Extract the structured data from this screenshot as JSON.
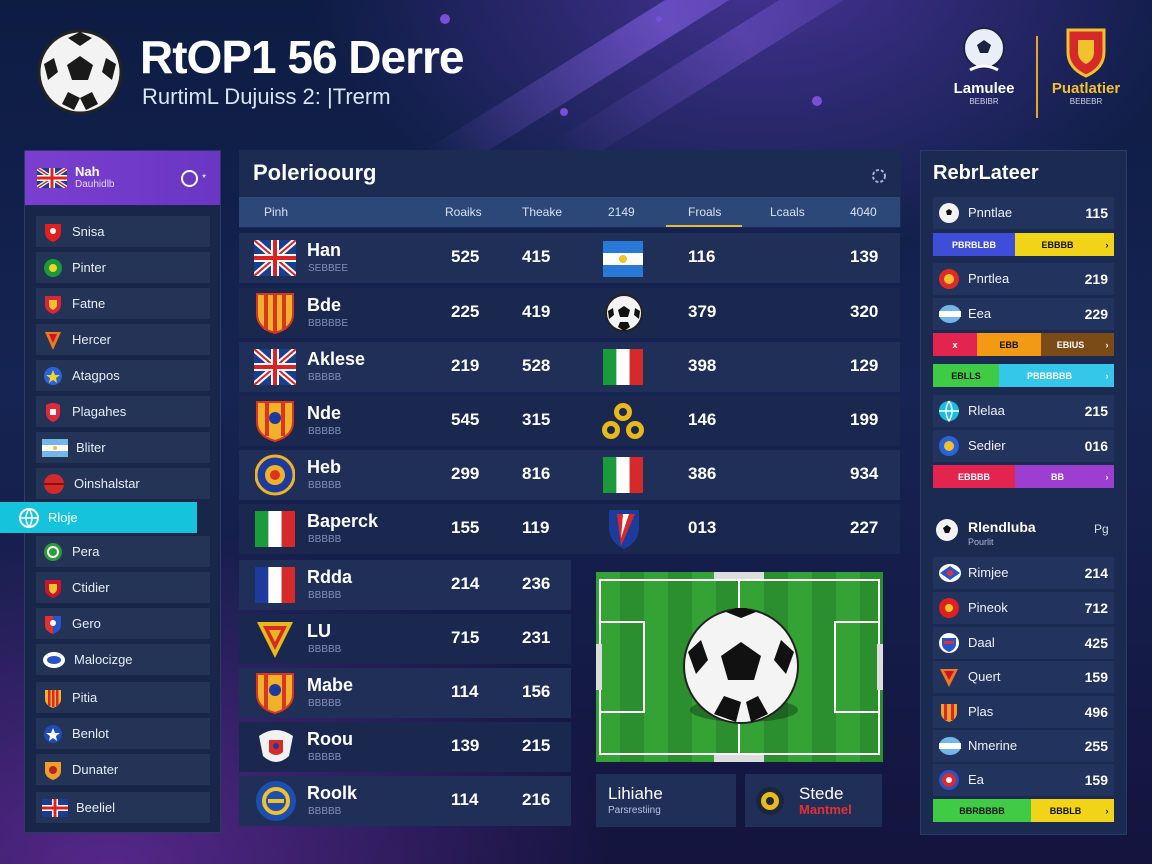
{
  "header": {
    "title": "RtOP1 56 Derre",
    "subtitle": "RurtimL Dujuiss 2: |Trerm",
    "brands": [
      {
        "name": "Lamulee",
        "sub": "BEBIBR"
      },
      {
        "name": "Puatlatier",
        "sub": "BEBEBR"
      }
    ]
  },
  "sidebar": {
    "header": {
      "title": "Nah",
      "subtitle": "Dauhidlb",
      "toggle_label": "*"
    },
    "items": [
      {
        "label": "Snisa",
        "icon": "red-shield-icon",
        "active": false
      },
      {
        "label": "Pinter",
        "icon": "green-crest-icon",
        "active": false
      },
      {
        "label": "Fatne",
        "icon": "red-crest-icon",
        "active": false
      },
      {
        "label": "Hercer",
        "icon": "orange-shield-icon",
        "active": false
      },
      {
        "label": "Atagpos",
        "icon": "blue-crest-icon",
        "active": false
      },
      {
        "label": "Plagahes",
        "icon": "red-badge-icon",
        "active": false
      },
      {
        "label": "Bliter",
        "icon": "argentina-flag-icon",
        "active": false
      },
      {
        "label": "Oinshalstar",
        "icon": "red-ball-icon",
        "active": false
      },
      {
        "label": "Rloje",
        "icon": "cyan-globe-icon",
        "active": true
      },
      {
        "label": "Pera",
        "icon": "green-badge-icon",
        "active": false
      },
      {
        "label": "Ctidier",
        "icon": "red-crest-icon",
        "active": false
      },
      {
        "label": "Gero",
        "icon": "blue-star-shield-icon",
        "active": false
      },
      {
        "label": "Malocizge",
        "icon": "blue-white-crest-icon",
        "active": false
      },
      {
        "label": "Pitia",
        "icon": "orange-stripes-icon",
        "active": false
      },
      {
        "label": "Benlot",
        "icon": "blue-star-icon",
        "active": false
      },
      {
        "label": "Dunater",
        "icon": "orange-crest-icon",
        "active": false
      },
      {
        "label": "Beeliel",
        "icon": "uk-flag-icon",
        "active": false
      }
    ]
  },
  "main": {
    "title": "Polerioourg",
    "columns": [
      "Pinh",
      "Roaiks",
      "Theake",
      "2149",
      "Froals",
      "Lcaals",
      "4040"
    ],
    "rows": [
      {
        "name": "Han",
        "sub": "SEBBEE",
        "v1": "525",
        "v2": "415",
        "v3": "116",
        "v4": "139",
        "flag": "uk-flag-icon",
        "mid_icon": "argentina-flag-icon"
      },
      {
        "name": "Bde",
        "sub": "BBBBBE",
        "v1": "225",
        "v2": "419",
        "v3": "379",
        "v4": "320",
        "flag": "spain-crest-icon",
        "mid_icon": "soccer-ball-icon"
      },
      {
        "name": "Aklese",
        "sub": "BBBBB",
        "v1": "219",
        "v2": "528",
        "v3": "398",
        "v4": "129",
        "flag": "uk-flag-icon",
        "mid_icon": "italy-flag-icon"
      },
      {
        "name": "Nde",
        "sub": "BBBBB",
        "v1": "545",
        "v2": "315",
        "v3": "146",
        "v4": "199",
        "flag": "striped-crest-icon",
        "mid_icon": "gold-emblem-icon"
      },
      {
        "name": "Heb",
        "sub": "BBBBB",
        "v1": "299",
        "v2": "816",
        "v3": "386",
        "v4": "934",
        "flag": "round-crest-icon",
        "mid_icon": "italy-flag-icon"
      },
      {
        "name": "Baperck",
        "sub": "BBBBB",
        "v1": "155",
        "v2": "119",
        "v3": "013",
        "v4": "227",
        "flag": "italy-flag-icon",
        "mid_icon": "blue-red-shield-icon"
      },
      {
        "name": "Rdda",
        "sub": "BBBBB",
        "v1": "214",
        "v2": "236",
        "flag": "france-flag-icon"
      },
      {
        "name": "LU",
        "sub": "BBBBB",
        "v1": "715",
        "v2": "231",
        "flag": "red-yellow-crest-icon"
      },
      {
        "name": "Mabe",
        "sub": "BBBBB",
        "v1": "114",
        "v2": "156",
        "flag": "orange-crest-icon"
      },
      {
        "name": "Roou",
        "sub": "BBBBB",
        "v1": "139",
        "v2": "215",
        "flag": "white-red-crest-icon"
      },
      {
        "name": "Roolk",
        "sub": "BBBBB",
        "v1": "114",
        "v2": "216",
        "flag": "blue-gold-crest-icon"
      }
    ],
    "cards": [
      {
        "title": "Lihiahe",
        "sub": "Parsrestiing"
      },
      {
        "title": "Stede",
        "sub": "Mantmel",
        "icon": "coin-icon"
      }
    ]
  },
  "right": {
    "title": "RebrLateer",
    "subheader": {
      "title": "Rlendluba",
      "sub": "Pourlit",
      "value": "Pg"
    },
    "items": [
      {
        "label": "Pnntlae",
        "value": "115",
        "icon": "soccer-ball-icon"
      },
      {
        "label": "Pnrtlea",
        "value": "219",
        "icon": "red-crest-icon"
      },
      {
        "label": "Eea",
        "value": "229",
        "icon": "argentina-flag-icon"
      },
      {
        "label": "Rlelaa",
        "value": "215",
        "icon": "cyan-globe-icon"
      },
      {
        "label": "Sedier",
        "value": "016",
        "icon": "blue-crest-icon"
      },
      {
        "label": "Rimjee",
        "value": "214",
        "icon": "blue-white-crest-icon"
      },
      {
        "label": "Pineok",
        "value": "712",
        "icon": "red-badge-icon"
      },
      {
        "label": "Daal",
        "value": "425",
        "icon": "blue-crest-icon"
      },
      {
        "label": "Quert",
        "value": "159",
        "icon": "orange-shield-icon"
      },
      {
        "label": "Plas",
        "value": "496",
        "icon": "red-crest-icon"
      },
      {
        "label": "Nmerine",
        "value": "255",
        "icon": "argentina-flag-icon"
      },
      {
        "label": "Ea",
        "value": "159",
        "icon": "red-crest-icon"
      }
    ],
    "segment_bars": [
      {
        "segments": [
          {
            "label": "PBRBLBB",
            "color": "#3e4ed8"
          },
          {
            "label": "EBBBB",
            "color": "#f1d417"
          }
        ],
        "arrow": "›"
      },
      {
        "segments": [
          {
            "label": "x",
            "color": "#e3244f"
          },
          {
            "label": "EBB",
            "color": "#f39a14"
          },
          {
            "label": "EBIUS",
            "color": "#7a4a17"
          }
        ],
        "arrow": "›"
      },
      {
        "segments": [
          {
            "label": "EBLLS",
            "color": "#3fcb45"
          },
          {
            "label": "PBBBBBB",
            "color": "#35c7ea"
          }
        ],
        "arrow": "›"
      },
      {
        "segments": [
          {
            "label": "EBBBB",
            "color": "#e3244f"
          },
          {
            "label": "BB",
            "color": "#9c3fd0"
          }
        ],
        "arrow": "›"
      },
      {
        "segments": [
          {
            "label": "BBRBBBB",
            "color": "#3fcb45"
          },
          {
            "label": "BBBLB",
            "color": "#f1d417"
          }
        ],
        "arrow": "›"
      }
    ]
  },
  "colors": {
    "accent": "#16c3dc",
    "purple": "#7a3fd0",
    "gold": "#e9b935"
  }
}
